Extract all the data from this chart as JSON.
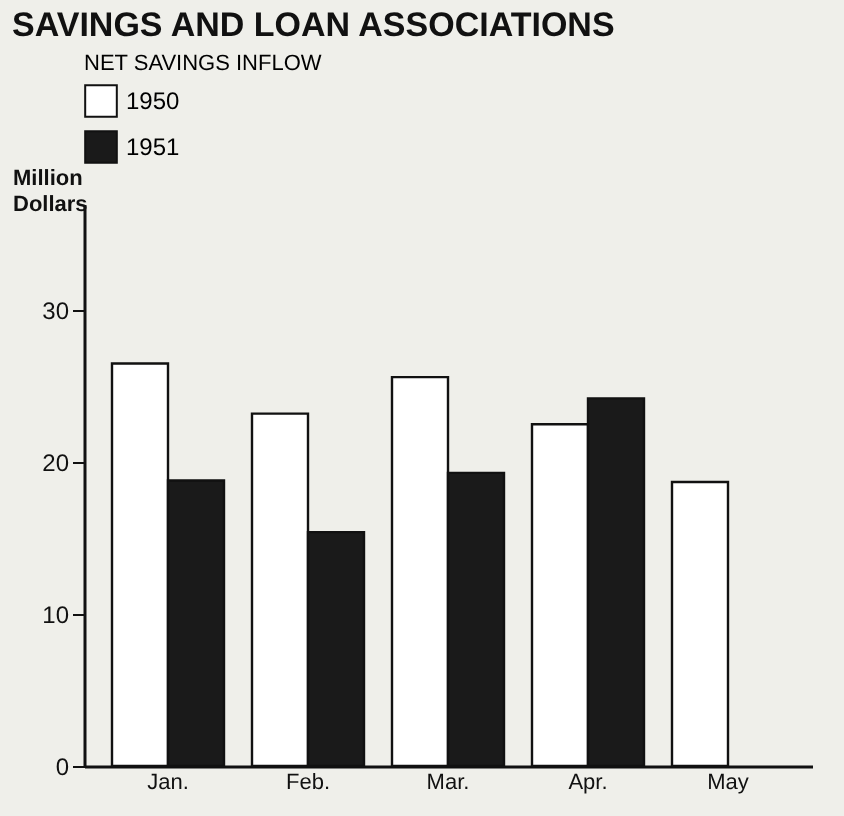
{
  "chart_data": {
    "type": "bar",
    "title": "SAVINGS AND LOAN ASSOCIATIONS",
    "ylabel": "Million Dollars",
    "legend_title": "NET SAVINGS INFLOW",
    "categories": [
      "Jan.",
      "Feb.",
      "Mar.",
      "Apr.",
      "May"
    ],
    "series": [
      {
        "name": "1950",
        "color": "#ffffff",
        "values": [
          26.5,
          23.2,
          25.6,
          22.5,
          18.7
        ]
      },
      {
        "name": "1951",
        "color": "#1a1a1a",
        "values": [
          18.8,
          15.4,
          19.3,
          24.2,
          null
        ]
      }
    ],
    "ylim": [
      0,
      37
    ],
    "yticks": [
      0,
      10,
      20,
      30
    ],
    "grid": false,
    "legend": "top"
  }
}
